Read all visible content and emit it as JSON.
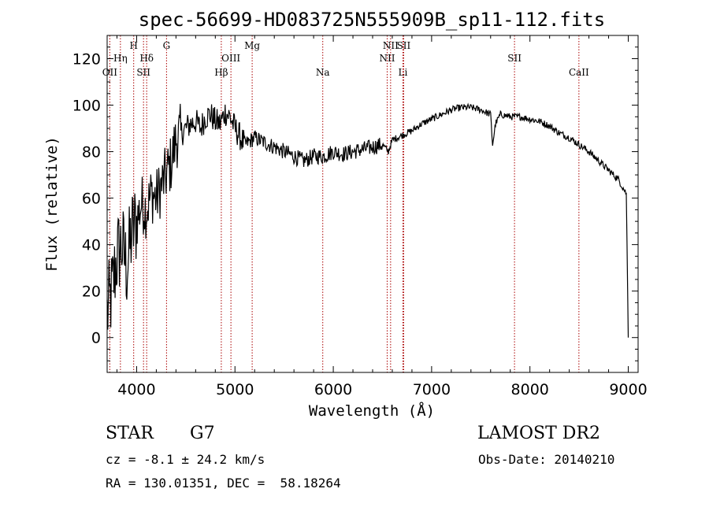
{
  "chart_data": {
    "type": "line",
    "title": "spec-56699-HD083725N555909B_sp11-112.fits",
    "xlabel": "Wavelength (Å)",
    "ylabel": "Flux (relative)",
    "xlim": [
      3700,
      9100
    ],
    "ylim": [
      -15,
      130
    ],
    "xticks": [
      4000,
      5000,
      6000,
      7000,
      8000,
      9000
    ],
    "yticks": [
      0,
      20,
      40,
      60,
      80,
      100,
      120
    ],
    "grid": false,
    "line_color": "#000000",
    "marker_color": "#aa0000",
    "spectral_lines": [
      {
        "label": "OII",
        "x": 3727,
        "row": 3
      },
      {
        "label": "Hη",
        "x": 3835,
        "row": 2
      },
      {
        "label": "H",
        "x": 3970,
        "row": 1
      },
      {
        "label": "SII",
        "x": 4070,
        "row": 3
      },
      {
        "label": "Hδ",
        "x": 4102,
        "row": 2
      },
      {
        "label": "G",
        "x": 4304,
        "row": 1
      },
      {
        "label": "Hβ",
        "x": 4861,
        "row": 3
      },
      {
        "label": "OIII",
        "x": 4959,
        "row": 2
      },
      {
        "label": "Mg",
        "x": 5175,
        "row": 1
      },
      {
        "label": "Na",
        "x": 5893,
        "row": 3
      },
      {
        "label": "NII",
        "x": 6548,
        "row": 2
      },
      {
        "label": "NII",
        "x": 6583,
        "row": 1
      },
      {
        "label": "Li",
        "x": 6708,
        "row": 3
      },
      {
        "label": "SII",
        "x": 6716,
        "row": 1
      },
      {
        "label": "SII",
        "x": 7843,
        "row": 2
      },
      {
        "label": "CaII",
        "x": 8498,
        "row": 3
      }
    ],
    "series": [
      {
        "x": [
          3700,
          3750,
          3800,
          3850,
          3900,
          3950,
          4000,
          4050,
          4100,
          4150,
          4200,
          4250,
          4300,
          4350,
          4400,
          4450,
          4500,
          4550,
          4600,
          4650,
          4700,
          4750,
          4800,
          4850,
          4900,
          4950,
          5000,
          5100,
          5200,
          5300,
          5400,
          5500,
          5600,
          5700,
          5800,
          5900,
          6000,
          6100,
          6200,
          6300,
          6400,
          6500,
          6560,
          6600,
          6700,
          6800,
          6900,
          7000,
          7100,
          7200,
          7300,
          7400,
          7500,
          7550,
          7600,
          7620,
          7650,
          7700,
          7800,
          7900,
          8000,
          8100,
          8200,
          8300,
          8400,
          8500,
          8600,
          8700,
          8800,
          8900,
          8980,
          9000
        ],
        "y": [
          10,
          20,
          35,
          40,
          30,
          45,
          50,
          58,
          55,
          62,
          60,
          65,
          70,
          75,
          85,
          88,
          90,
          92,
          93,
          90,
          95,
          96,
          93,
          92,
          97,
          95,
          90,
          83,
          86,
          84,
          82,
          80,
          78,
          76,
          78,
          78,
          80,
          79,
          80,
          81,
          82,
          83,
          80,
          85,
          87,
          89,
          92,
          94,
          96,
          98,
          99,
          99,
          98,
          97,
          96,
          83,
          92,
          96,
          95,
          95,
          94,
          93,
          91,
          88,
          86,
          83,
          80,
          76,
          72,
          68,
          62,
          0
        ]
      }
    ]
  },
  "info": {
    "class_label": "STAR",
    "subclass_label": "G7",
    "survey_label": "LAMOST DR2",
    "cz_text": "cz = -8.1 ± 24.2 km/s",
    "obs_date_text": "Obs-Date: 20140210",
    "radec_text": "RA = 130.01351, DEC =  58.18264"
  }
}
